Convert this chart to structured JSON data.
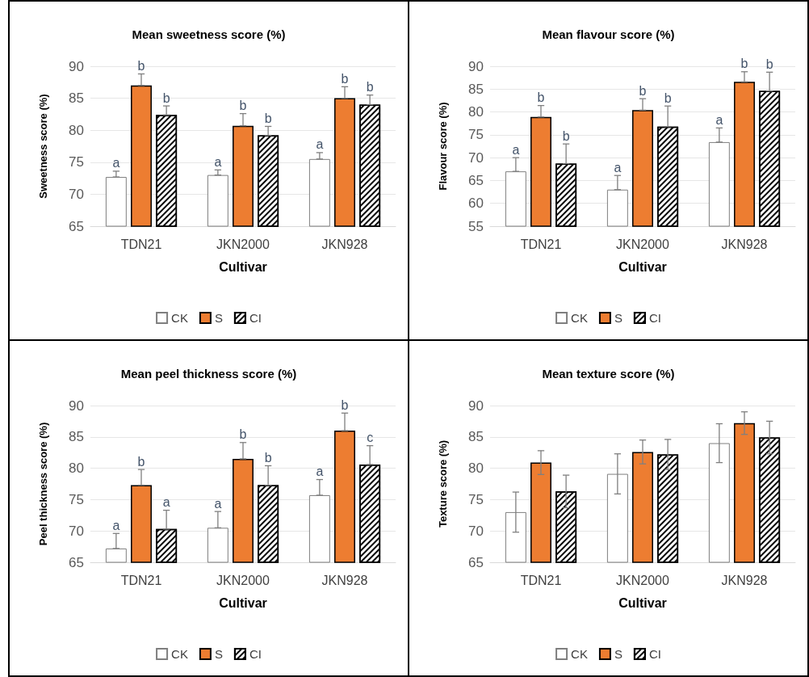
{
  "chart_data": [
    {
      "type": "bar",
      "title": "Mean sweetness score (%)",
      "xlabel": "Cultivar",
      "ylabel": "Sweetness score (%)",
      "categories": [
        "TDN21",
        "JKN2000",
        "JKN928"
      ],
      "ylim": [
        65,
        90
      ],
      "yticks": [
        65,
        70,
        75,
        80,
        85,
        90
      ],
      "grid": "y",
      "legend": "bottom",
      "series": [
        {
          "name": "CK",
          "color": "#ffffff",
          "values": [
            72.7,
            73.0,
            75.5
          ],
          "errors": [
            [
              72.7,
              73.6
            ],
            [
              73.0,
              73.8
            ],
            [
              75.5,
              76.5
            ]
          ],
          "value_labels": [
            "a",
            "a",
            "a"
          ]
        },
        {
          "name": "S",
          "color": "#ed7d31",
          "values": [
            87.0,
            80.7,
            85.0
          ],
          "errors": [
            [
              87.0,
              88.8
            ],
            [
              80.7,
              82.6
            ],
            [
              85.0,
              86.8
            ]
          ],
          "value_labels": [
            "b",
            "b",
            "b"
          ]
        },
        {
          "name": "CI",
          "color": "#ffffff",
          "values": [
            82.4,
            79.2,
            84.0
          ],
          "errors": [
            [
              82.4,
              83.8
            ],
            [
              79.2,
              80.6
            ],
            [
              84.0,
              85.5
            ]
          ],
          "value_labels": [
            "b",
            "b",
            "b"
          ]
        }
      ]
    },
    {
      "type": "bar",
      "title": "Mean flavour score (%)",
      "xlabel": "Cultivar",
      "ylabel": "Flavour score (%)",
      "categories": [
        "TDN21",
        "JKN2000",
        "JKN928"
      ],
      "ylim": [
        55,
        90
      ],
      "yticks": [
        55,
        60,
        65,
        70,
        75,
        80,
        85,
        90
      ],
      "grid": "y",
      "legend": "bottom",
      "series": [
        {
          "name": "CK",
          "color": "#ffffff",
          "values": [
            67.0,
            63.0,
            73.4
          ],
          "errors": [
            [
              67.0,
              70.0
            ],
            [
              63.0,
              66.1
            ],
            [
              73.4,
              76.5
            ]
          ],
          "value_labels": [
            "a",
            "a",
            "a"
          ]
        },
        {
          "name": "S",
          "color": "#ed7d31",
          "values": [
            78.9,
            80.4,
            86.6
          ],
          "errors": [
            [
              78.9,
              81.4
            ],
            [
              80.4,
              82.9
            ],
            [
              86.6,
              88.8
            ]
          ],
          "value_labels": [
            "b",
            "b",
            "b"
          ]
        },
        {
          "name": "CI",
          "color": "#ffffff",
          "values": [
            68.7,
            76.8,
            84.6
          ],
          "errors": [
            [
              68.7,
              73.0
            ],
            [
              76.8,
              81.3
            ],
            [
              84.6,
              88.7
            ]
          ],
          "value_labels": [
            "b",
            "b",
            "b"
          ]
        }
      ]
    },
    {
      "type": "bar",
      "title": "Mean peel thickness score (%)",
      "xlabel": "Cultivar",
      "ylabel": "Peel thickness score (%)",
      "categories": [
        "TDN21",
        "JKN2000",
        "JKN928"
      ],
      "ylim": [
        65,
        90
      ],
      "yticks": [
        65,
        70,
        75,
        80,
        85,
        90
      ],
      "grid": "y",
      "legend": "bottom",
      "series": [
        {
          "name": "CK",
          "color": "#ffffff",
          "values": [
            67.2,
            70.5,
            75.7
          ],
          "errors": [
            [
              67.2,
              69.6
            ],
            [
              70.5,
              73.1
            ],
            [
              75.7,
              78.2
            ]
          ],
          "value_labels": [
            "a",
            "a",
            "a"
          ]
        },
        {
          "name": "S",
          "color": "#ed7d31",
          "values": [
            77.3,
            81.5,
            86.0
          ],
          "errors": [
            [
              77.3,
              79.8
            ],
            [
              81.5,
              84.1
            ],
            [
              86.0,
              88.8
            ]
          ],
          "value_labels": [
            "b",
            "b",
            "b"
          ]
        },
        {
          "name": "CI",
          "color": "#ffffff",
          "values": [
            70.3,
            77.3,
            80.6
          ],
          "errors": [
            [
              70.3,
              73.3
            ],
            [
              77.3,
              80.4
            ],
            [
              80.6,
              83.6
            ]
          ],
          "value_labels": [
            "a",
            "b",
            "c"
          ]
        }
      ]
    },
    {
      "type": "bar",
      "title": "Mean texture score (%)",
      "xlabel": "Cultivar",
      "ylabel": "Texture score (%)",
      "categories": [
        "TDN21",
        "JKN2000",
        "JKN928"
      ],
      "ylim": [
        65,
        90
      ],
      "yticks": [
        65,
        70,
        75,
        80,
        85,
        90
      ],
      "grid": "y",
      "legend": "bottom",
      "series": [
        {
          "name": "CK",
          "color": "#ffffff",
          "values": [
            73.0,
            79.1,
            84.0
          ],
          "errors": [
            3.2,
            3.2,
            3.1
          ]
        },
        {
          "name": "S",
          "color": "#ed7d31",
          "values": [
            80.9,
            82.6,
            87.2
          ],
          "errors": [
            1.9,
            1.9,
            1.8
          ]
        },
        {
          "name": "CI",
          "color": "#ffffff",
          "values": [
            76.3,
            82.2,
            84.9
          ],
          "errors": [
            2.6,
            2.4,
            2.6
          ]
        }
      ]
    }
  ]
}
